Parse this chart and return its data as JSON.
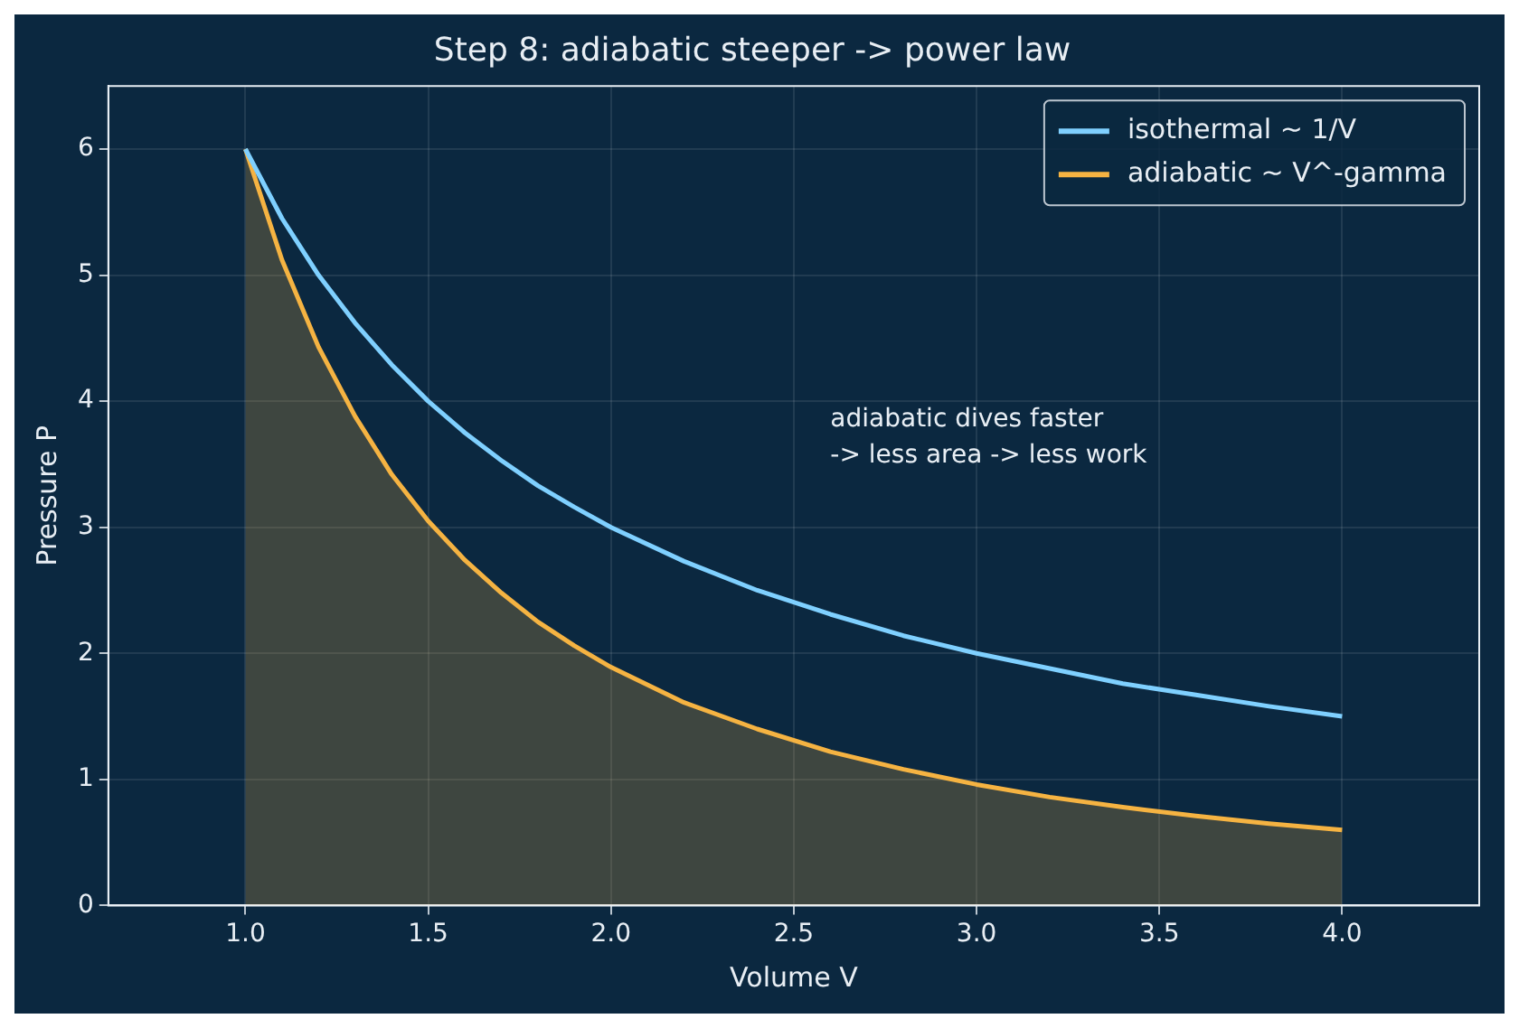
{
  "chart_data": {
    "type": "line",
    "title": "Step 8: adiabatic steeper -> power law",
    "xlabel": "Volume V",
    "ylabel": "Pressure P",
    "x": [
      1,
      1.1,
      1.2,
      1.3,
      1.4,
      1.5,
      1.6,
      1.7,
      1.8,
      1.9,
      2,
      2.2,
      2.4,
      2.6,
      2.8,
      3,
      3.2,
      3.4,
      3.6,
      3.8,
      4
    ],
    "series": [
      {
        "name": "isothermal ~ 1/V",
        "type": "line",
        "color": "#7fd0ff",
        "values": [
          6,
          5.45,
          5,
          4.62,
          4.29,
          4,
          3.75,
          3.53,
          3.33,
          3.16,
          3,
          2.73,
          2.5,
          2.31,
          2.14,
          2,
          1.88,
          1.76,
          1.67,
          1.58,
          1.5
        ]
      },
      {
        "name": "adiabatic ~ V^-gamma",
        "type": "area",
        "color": "#f5b342",
        "values": [
          6,
          5.12,
          4.43,
          3.88,
          3.42,
          3.05,
          2.74,
          2.48,
          2.25,
          2.06,
          1.89,
          1.61,
          1.4,
          1.22,
          1.08,
          0.96,
          0.86,
          0.78,
          0.71,
          0.65,
          0.6
        ]
      }
    ],
    "xlim": [
      0.625,
      4.375
    ],
    "xticks": [
      {
        "value": 1,
        "label": "1.0"
      },
      {
        "value": 1.5,
        "label": "1.5"
      },
      {
        "value": 2,
        "label": "2.0"
      },
      {
        "value": 2.5,
        "label": "2.5"
      },
      {
        "value": 3,
        "label": "3.0"
      },
      {
        "value": 3.5,
        "label": "3.5"
      },
      {
        "value": 4,
        "label": "4.0"
      }
    ],
    "ylim": [
      0,
      6.5
    ],
    "yticks": [
      0,
      1,
      2,
      3,
      4,
      5,
      6
    ],
    "grid": true,
    "legend": "top right",
    "annotations": [
      "adiabatic dives faster\n-> less area -> less work"
    ]
  }
}
